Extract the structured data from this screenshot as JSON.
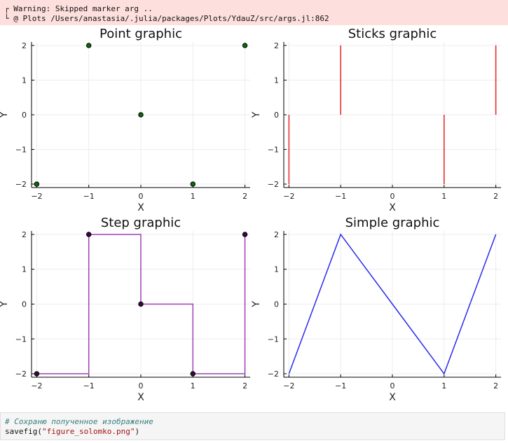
{
  "warning": {
    "line1": "┌ Warning: Skipped marker arg ..",
    "line2": "└ @ Plots /Users/anastasia/.julia/packages/Plots/YdauZ/src/args.jl:862"
  },
  "colors": {
    "point": "#0a6b0a",
    "sticks": "#e8302f",
    "step": "#a040b8",
    "simple": "#2a2af0",
    "grid": "#ececec"
  },
  "chart_data": [
    {
      "type": "scatter",
      "title": "Point graphic",
      "xlabel": "X",
      "ylabel": "Y",
      "x": [
        -2,
        -1,
        0,
        1,
        2
      ],
      "y": [
        -2,
        2,
        0,
        -2,
        2
      ],
      "xlim": [
        -2.1,
        2.1
      ],
      "ylim": [
        -2.1,
        2.1
      ],
      "xticks": [
        -2,
        -1,
        0,
        1,
        2
      ],
      "yticks": [
        -2,
        -1,
        0,
        1,
        2
      ],
      "xtick_labels": [
        "−2",
        "−1",
        "0",
        "1",
        "2"
      ],
      "ytick_labels": [
        "−2",
        "−1",
        "0",
        "1",
        "2"
      ],
      "grid": true,
      "legend": "none"
    },
    {
      "type": "sticks",
      "title": "Sticks graphic",
      "xlabel": "X",
      "ylabel": "Y",
      "x": [
        -2,
        -1,
        0,
        1,
        2
      ],
      "y": [
        -2,
        2,
        0,
        -2,
        2
      ],
      "xlim": [
        -2.1,
        2.1
      ],
      "ylim": [
        -2.1,
        2.1
      ],
      "xticks": [
        -2,
        -1,
        0,
        1,
        2
      ],
      "yticks": [
        -2,
        -1,
        0,
        1,
        2
      ],
      "xtick_labels": [
        "−2",
        "−1",
        "0",
        "1",
        "2"
      ],
      "ytick_labels": [
        "−2",
        "−1",
        "0",
        "1",
        "2"
      ],
      "grid": true,
      "legend": "none"
    },
    {
      "type": "step",
      "title": "Step graphic",
      "xlabel": "X",
      "ylabel": "Y",
      "x": [
        -2,
        -1,
        0,
        1,
        2
      ],
      "y": [
        -2,
        2,
        0,
        -2,
        2
      ],
      "xlim": [
        -2.1,
        2.1
      ],
      "ylim": [
        -2.1,
        2.1
      ],
      "xticks": [
        -2,
        -1,
        0,
        1,
        2
      ],
      "yticks": [
        -2,
        -1,
        0,
        1,
        2
      ],
      "xtick_labels": [
        "−2",
        "−1",
        "0",
        "1",
        "2"
      ],
      "ytick_labels": [
        "−2",
        "−1",
        "0",
        "1",
        "2"
      ],
      "grid": true,
      "legend": "none"
    },
    {
      "type": "line",
      "title": "Simple graphic",
      "xlabel": "X",
      "ylabel": "Y",
      "x": [
        -2,
        -1,
        0,
        1,
        2
      ],
      "y": [
        -2,
        2,
        0,
        -2,
        2
      ],
      "xlim": [
        -2.1,
        2.1
      ],
      "ylim": [
        -2.1,
        2.1
      ],
      "xticks": [
        -2,
        -1,
        0,
        1,
        2
      ],
      "yticks": [
        -2,
        -1,
        0,
        1,
        2
      ],
      "xtick_labels": [
        "−2",
        "−1",
        "0",
        "1",
        "2"
      ],
      "ytick_labels": [
        "−2",
        "−1",
        "0",
        "1",
        "2"
      ],
      "grid": true,
      "legend": "none"
    }
  ],
  "code_cell": {
    "comment": "# Сохраню полученное изображение",
    "func": "savefig(",
    "arg": "\"figure_solomko.png\"",
    "close": ")"
  }
}
